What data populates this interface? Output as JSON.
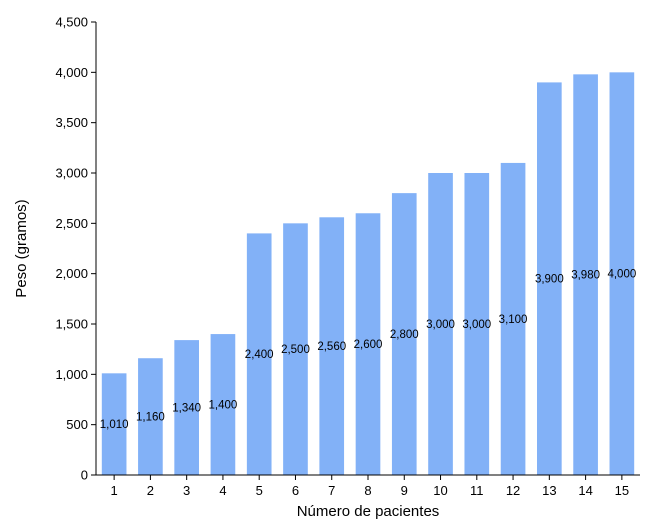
{
  "chart_data": {
    "type": "bar",
    "title": "",
    "xlabel": "Número de pacientes",
    "ylabel": "Peso (gramos)",
    "categories": [
      "1",
      "2",
      "3",
      "4",
      "5",
      "6",
      "7",
      "8",
      "9",
      "10",
      "11",
      "12",
      "13",
      "14",
      "15"
    ],
    "values": [
      1010,
      1160,
      1340,
      1400,
      2400,
      2500,
      2560,
      2600,
      2800,
      3000,
      3000,
      3100,
      3900,
      3980,
      4000
    ],
    "data_labels": [
      "1,010",
      "1,160",
      "1,340",
      "1,400",
      "2,400",
      "2,500",
      "2,560",
      "2,600",
      "2,800",
      "3,000",
      "3,000",
      "3,100",
      "3,900",
      "3,980",
      "4,000"
    ],
    "ylim": [
      0,
      4500
    ],
    "yticks": [
      0,
      500,
      1000,
      1500,
      2000,
      2500,
      3000,
      3500,
      4000,
      4500
    ],
    "ytick_labels": [
      "0",
      "500",
      "1,000",
      "1,500",
      "2,000",
      "2,500",
      "3,000",
      "3,500",
      "4,000",
      "4,500"
    ],
    "grid": false,
    "legend": "none",
    "bar_color": "#82B1F7"
  }
}
